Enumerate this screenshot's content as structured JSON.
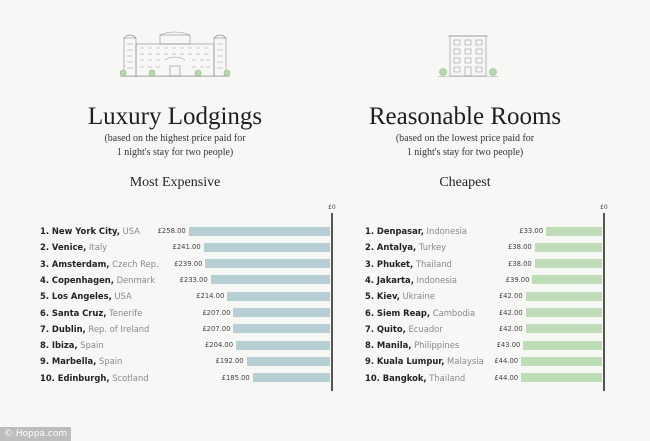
{
  "colors": {
    "luxury_bar": "#b6cfd5",
    "cheap_bar": "#bedcb6",
    "axis": "#555555"
  },
  "footer": "© Hoppa.com",
  "chart_data": [
    {
      "type": "bar",
      "orientation": "horizontal",
      "section_title": "Luxury Lodgings",
      "section_subtitle_1": "(based on the highest price paid for",
      "section_subtitle_2": "1 night's stay for two people)",
      "title": "Most Expensive",
      "axis_label": "£0",
      "icon": "grand-hotel-illustration",
      "categories": [
        {
          "city": "1. New York City,",
          "country": "USA"
        },
        {
          "city": "2. Venice,",
          "country": "Italy"
        },
        {
          "city": "3. Amsterdam,",
          "country": "Czech Rep."
        },
        {
          "city": "4. Copenhagen,",
          "country": "Denmark"
        },
        {
          "city": "5. Los Angeles,",
          "country": "USA"
        },
        {
          "city": "6. Santa Cruz,",
          "country": "Tenerife"
        },
        {
          "city": "7. Dublin,",
          "country": "Rep. of Ireland"
        },
        {
          "city": "8. Ibiza,",
          "country": "Spain"
        },
        {
          "city": "9. Marbella,",
          "country": "Spain"
        },
        {
          "city": "10. Edinburgh,",
          "country": "Scotland"
        }
      ],
      "values": [
        258,
        241,
        239,
        233,
        214,
        207,
        207,
        204,
        192,
        185
      ],
      "value_labels": [
        "£258.00",
        "£241.00",
        "£239.00",
        "£233.00",
        "£214.00",
        "£207.00",
        "£207.00",
        "£204.00",
        "£192.00",
        "£185.00"
      ]
    },
    {
      "type": "bar",
      "orientation": "horizontal",
      "section_title": "Reasonable Rooms",
      "section_subtitle_1": "(based on the lowest price paid for",
      "section_subtitle_2": "1 night's stay for two people)",
      "title": "Cheapest",
      "axis_label": "£0",
      "icon": "apartment-building-illustration",
      "categories": [
        {
          "city": "1. Denpasar,",
          "country": "Indonesia"
        },
        {
          "city": "2. Antalya,",
          "country": "Turkey"
        },
        {
          "city": "3. Phuket,",
          "country": "Thailand"
        },
        {
          "city": "4. Jakarta,",
          "country": "Indonesia"
        },
        {
          "city": "5. Kiev,",
          "country": "Ukraine"
        },
        {
          "city": "6. Siem Reap,",
          "country": "Cambodia"
        },
        {
          "city": "7. Quito,",
          "country": "Ecuador"
        },
        {
          "city": "8. Manila,",
          "country": "Philippines"
        },
        {
          "city": "9. Kuala Lumpur,",
          "country": "Malaysia"
        },
        {
          "city": "10. Bangkok,",
          "country": "Thailand"
        }
      ],
      "values": [
        33,
        38,
        38,
        39,
        42,
        42,
        42,
        43,
        44,
        44
      ],
      "value_labels": [
        "£33.00",
        "£38.00",
        "£38.00",
        "£39.00",
        "£42.00",
        "£42.00",
        "£42.00",
        "£43.00",
        "£44.00",
        "£44.00"
      ]
    }
  ]
}
